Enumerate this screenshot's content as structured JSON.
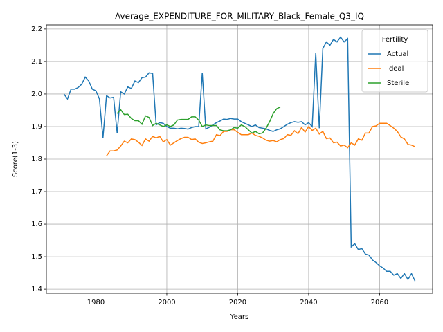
{
  "chart_data": {
    "type": "line",
    "title": "Average_EXPENDITURE_FOR_MILITARY_Black_Female_Q3_IQ",
    "xlabel": "Years",
    "ylabel": "Score(1-3)",
    "legend_title": "Fertility",
    "legend": "upper right",
    "grid": true,
    "xlim": [
      1966.05,
      2074.95
    ],
    "ylim": [
      1.3875,
      2.2125
    ],
    "xticks": [
      1980,
      2000,
      2020,
      2040,
      2060
    ],
    "yticks": [
      1.4,
      1.5,
      1.6,
      1.7,
      1.8,
      1.9,
      {
        "value": 2,
        "label": "2.0"
      },
      2.1,
      2.2
    ],
    "x": [
      1971,
      1972,
      1973,
      1974,
      1975,
      1976,
      1977,
      1978,
      1979,
      1980,
      1981,
      1982,
      1983,
      1984,
      1985,
      1986,
      1987,
      1988,
      1989,
      1990,
      1991,
      1992,
      1993,
      1994,
      1995,
      1996,
      1997,
      1998,
      1999,
      2000,
      2001,
      2002,
      2003,
      2004,
      2005,
      2006,
      2007,
      2008,
      2009,
      2010,
      2011,
      2012,
      2013,
      2014,
      2015,
      2016,
      2017,
      2018,
      2019,
      2020,
      2021,
      2022,
      2023,
      2024,
      2025,
      2026,
      2027,
      2028,
      2029,
      2030,
      2031,
      2032,
      2033,
      2034,
      2035,
      2036,
      2037,
      2038,
      2039,
      2040,
      2041,
      2042,
      2043,
      2044,
      2045,
      2046,
      2047,
      2048,
      2049,
      2050,
      2051,
      2052,
      2053,
      2054,
      2055,
      2056,
      2057,
      2058,
      2059,
      2060,
      2061,
      2062,
      2063,
      2064,
      2065,
      2066,
      2067,
      2068,
      2069,
      2070
    ],
    "series": [
      {
        "name": "Actual",
        "color": "#1f77b4",
        "values": [
          2.0,
          1.985,
          2.015,
          2.015,
          2.02,
          2.03,
          2.052,
          2.04,
          2.015,
          2.01,
          1.985,
          1.865,
          1.995,
          1.988,
          1.99,
          1.88,
          2.007,
          2.0,
          2.022,
          2.017,
          2.04,
          2.035,
          2.05,
          2.052,
          2.065,
          2.063,
          1.905,
          1.912,
          1.91,
          1.9,
          1.895,
          1.895,
          1.893,
          1.895,
          1.894,
          1.892,
          1.897,
          1.9,
          1.9,
          2.065,
          1.893,
          1.898,
          1.905,
          1.912,
          1.917,
          1.923,
          1.922,
          1.925,
          1.923,
          1.923,
          1.915,
          1.91,
          1.905,
          1.9,
          1.905,
          1.897,
          1.895,
          1.893,
          1.888,
          1.885,
          1.89,
          1.893,
          1.9,
          1.907,
          1.912,
          1.915,
          1.913,
          1.915,
          1.905,
          1.912,
          1.9,
          2.127,
          1.895,
          2.14,
          2.16,
          2.15,
          2.168,
          2.16,
          2.175,
          2.16,
          2.17,
          1.53,
          1.54,
          1.522,
          1.525,
          1.508,
          1.505,
          1.49,
          1.482,
          1.472,
          1.465,
          1.455,
          1.455,
          1.443,
          1.448,
          1.433,
          1.448,
          1.43,
          1.448,
          1.425
        ]
      },
      {
        "name": "Ideal",
        "color": "#ff7f0e",
        "values": [
          null,
          null,
          null,
          null,
          null,
          null,
          null,
          null,
          null,
          null,
          null,
          null,
          1.81,
          1.825,
          1.825,
          1.828,
          1.84,
          1.855,
          1.85,
          1.862,
          1.86,
          1.852,
          1.842,
          1.862,
          1.855,
          1.87,
          1.865,
          1.87,
          1.853,
          1.86,
          1.843,
          1.85,
          1.857,
          1.863,
          1.867,
          1.867,
          1.86,
          1.862,
          1.852,
          1.848,
          1.85,
          1.853,
          1.855,
          1.875,
          1.872,
          1.885,
          1.885,
          1.89,
          1.89,
          1.882,
          1.875,
          1.875,
          1.875,
          1.88,
          1.873,
          1.87,
          1.865,
          1.858,
          1.855,
          1.857,
          1.853,
          1.86,
          1.863,
          1.875,
          1.873,
          1.887,
          1.878,
          1.897,
          1.883,
          1.9,
          1.888,
          1.895,
          1.877,
          1.885,
          1.863,
          1.865,
          1.85,
          1.852,
          1.84,
          1.843,
          1.835,
          1.85,
          1.843,
          1.862,
          1.858,
          1.88,
          1.88,
          1.9,
          1.902,
          1.91,
          1.91,
          1.91,
          1.903,
          1.895,
          1.885,
          1.868,
          1.862,
          1.845,
          1.843,
          1.838
        ]
      },
      {
        "name": "Sterile",
        "color": "#2ca02c",
        "values": [
          null,
          null,
          null,
          null,
          null,
          null,
          null,
          null,
          null,
          null,
          null,
          null,
          null,
          null,
          null,
          1.94,
          1.952,
          1.937,
          1.938,
          1.925,
          1.918,
          1.918,
          1.907,
          1.933,
          1.928,
          1.903,
          1.91,
          1.905,
          1.9,
          1.905,
          1.9,
          1.905,
          1.92,
          1.922,
          1.922,
          1.922,
          1.93,
          1.93,
          1.92,
          1.9,
          1.905,
          1.903,
          1.903,
          1.903,
          1.89,
          1.887,
          1.887,
          1.89,
          1.897,
          1.895,
          1.905,
          1.9,
          1.89,
          1.88,
          1.885,
          1.878,
          1.88,
          1.895,
          1.915,
          1.94,
          1.955,
          1.96,
          null,
          null,
          null,
          null,
          null,
          null,
          null,
          null,
          null,
          null,
          null,
          null,
          null,
          null,
          null,
          null,
          null,
          null,
          null,
          null,
          null,
          null,
          null,
          null,
          null,
          null,
          null,
          null,
          null,
          null,
          null,
          null,
          null,
          null,
          null,
          null,
          null,
          null
        ]
      }
    ]
  }
}
